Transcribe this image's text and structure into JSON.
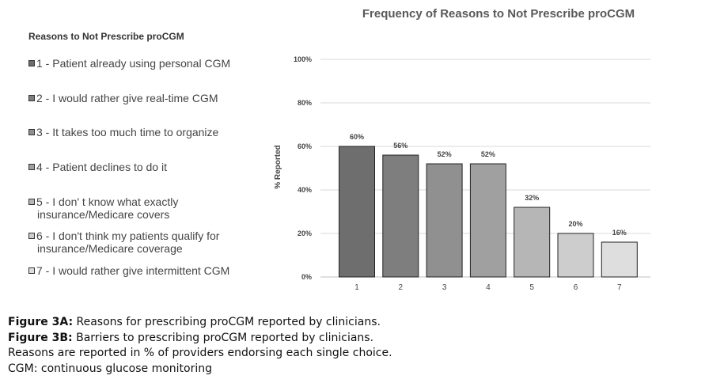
{
  "chart_data": {
    "type": "bar",
    "title": "Frequency of Reasons to Not Prescribe proCGM",
    "ylabel": "% Reported",
    "xlabel": "",
    "categories": [
      "1",
      "2",
      "3",
      "4",
      "5",
      "6",
      "7"
    ],
    "values": [
      60,
      56,
      52,
      52,
      32,
      20,
      16
    ],
    "value_labels": [
      "60%",
      "56%",
      "52%",
      "52%",
      "32%",
      "20%",
      "16%"
    ],
    "ylim": [
      0,
      100
    ],
    "yticks": [
      "0%",
      "20%",
      "40%",
      "60%",
      "80%",
      "100%"
    ],
    "grid": true,
    "bar_colors": [
      "#6e6e6e",
      "#7e7e7e",
      "#909090",
      "#a0a0a0",
      "#b6b6b6",
      "#cdcdcd",
      "#dedede"
    ]
  },
  "legend": {
    "title": "Reasons to Not Prescribe proCGM",
    "items": [
      {
        "text": "1 - Patient already using personal CGM"
      },
      {
        "text": "2 - I would rather give real-time CGM"
      },
      {
        "text": "3 - It takes too much time to organize"
      },
      {
        "text": "4 - Patient declines to do it"
      },
      {
        "text": "5 - I don' t know what exactly",
        "text2": "insurance/Medicare covers"
      },
      {
        "text": "6 - I don't think my patients qualify for",
        "text2": "insurance/Medicare coverage"
      },
      {
        "text": "7 - I would rather give intermittent CGM"
      }
    ]
  },
  "caption": {
    "fig3a_label": "Figure 3A:",
    "fig3a_text": " Reasons for prescribing proCGM reported by clinicians.",
    "fig3b_label": "Figure 3B:",
    "fig3b_text": " Barriers to prescribing proCGM reported by clinicians.",
    "line3": "Reasons are reported in % of providers endorsing each single choice.",
    "line4": "CGM: continuous glucose monitoring"
  }
}
